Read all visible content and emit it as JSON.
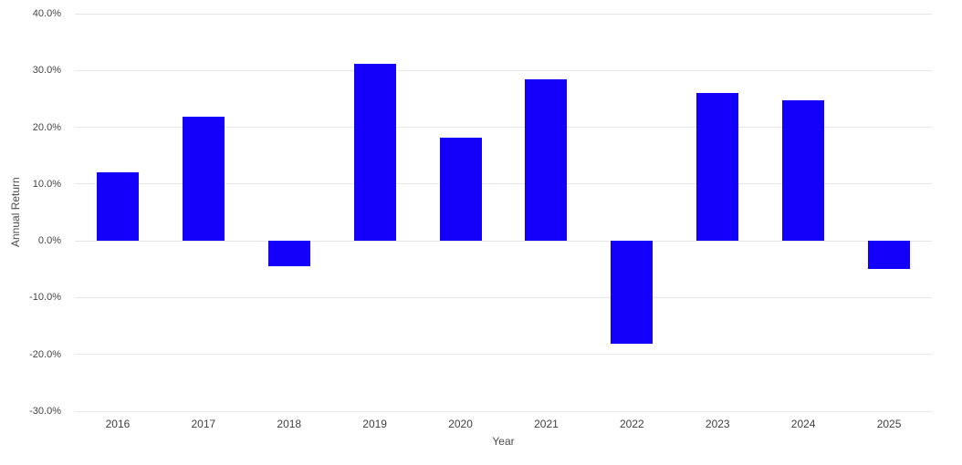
{
  "chart": {
    "background_color": "#ffffff",
    "bar_color": "#1400fa",
    "gridline_color": "#e6e6e6",
    "tick_label_color": "#444444",
    "axis_title_color": "#4c4c4c"
  },
  "chart_data": {
    "type": "bar",
    "title": "",
    "xlabel": "Year",
    "ylabel": "Annual Return",
    "categories": [
      "2016",
      "2017",
      "2018",
      "2019",
      "2020",
      "2021",
      "2022",
      "2023",
      "2024",
      "2025"
    ],
    "values": [
      12.0,
      21.8,
      -4.4,
      31.2,
      18.2,
      28.5,
      -18.1,
      26.1,
      24.8,
      -4.9
    ],
    "values_unit": "percent",
    "ylim": [
      -30,
      40
    ],
    "y_tick_step": 10,
    "y_tick_labels": [
      "40.0%",
      "30.0%",
      "20.0%",
      "10.0%",
      "0.0%",
      "-10.0%",
      "-20.0%",
      "-30.0%"
    ],
    "grid": true,
    "legend_position": "none"
  }
}
